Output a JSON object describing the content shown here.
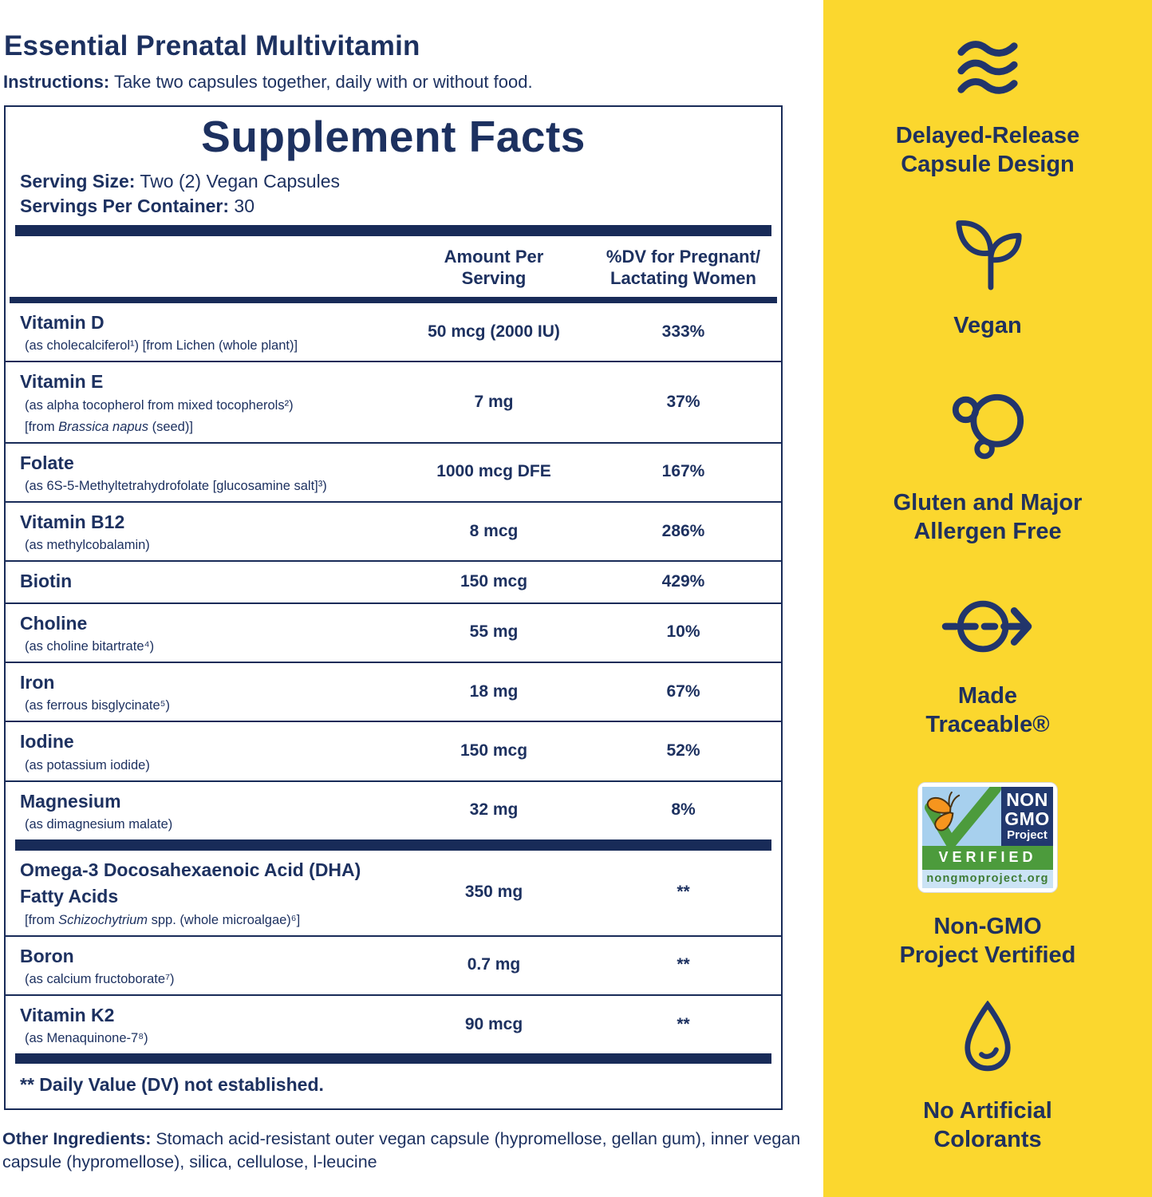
{
  "colors": {
    "navy": "#1D3160",
    "panel_yellow": "#FBD72E",
    "nongmo_sky": "#A7D0EE",
    "nongmo_navy": "#21386E",
    "nongmo_green": "#4C9B3C",
    "nongmo_orange": "#F6951E"
  },
  "header": {
    "title": "Essential Prenatal Multivitamin",
    "instructions_label": "Instructions:",
    "instructions_text": " Take two capsules together, daily with or without food."
  },
  "supplement_facts": {
    "title": "Supplement Facts",
    "serving_size_label": "Serving Size:",
    "serving_size_value": " Two (2) Vegan Capsules",
    "servings_label": "Servings Per Container:",
    "servings_value": " 30",
    "col_amount": "Amount Per\nServing",
    "col_dv": "%DV for Pregnant/\nLactating Women",
    "rows": [
      {
        "name": "Vitamin D",
        "sub": [
          "(as cholecalciferol¹) [from Lichen (whole plant)]"
        ],
        "amount": "50 mcg (2000 IU)",
        "dv": "333%"
      },
      {
        "name": "Vitamin E",
        "sub": [
          "(as alpha tocopherol from mixed tocopherols²)",
          "[from <i>Brassica napus</i> (seed)]"
        ],
        "amount": "7 mg",
        "dv": "37%"
      },
      {
        "name": "Folate",
        "sub": [
          "(as 6S-5-Methyltetrahydrofolate [glucosamine salt]³)"
        ],
        "amount": "1000 mcg DFE",
        "dv": "167%"
      },
      {
        "name": "Vitamin B12",
        "sub": [
          "(as methylcobalamin)"
        ],
        "amount": "8 mcg",
        "dv": "286%"
      },
      {
        "name": "Biotin",
        "sub": [],
        "amount": "150 mcg",
        "dv": "429%"
      },
      {
        "name": "Choline",
        "sub": [
          "(as choline bitartrate⁴)"
        ],
        "amount": "55 mg",
        "dv": "10%"
      },
      {
        "name": "Iron",
        "sub": [
          "(as ferrous bisglycinate⁵)"
        ],
        "amount": "18 mg",
        "dv": "67%"
      },
      {
        "name": "Iodine",
        "sub": [
          "(as potassium iodide)"
        ],
        "amount": "150 mcg",
        "dv": "52%"
      },
      {
        "name": "Magnesium",
        "sub": [
          "(as dimagnesium malate)"
        ],
        "amount": "32 mg",
        "dv": "8%",
        "thick_divider_after": true
      },
      {
        "name": "Omega-3 Docosahexaenoic Acid (DHA)\nFatty Acids",
        "sub": [
          "[from <i>Schizochytrium</i> spp. (whole microalgae)⁶]"
        ],
        "amount": "350 mg",
        "dv": "**"
      },
      {
        "name": "Boron",
        "sub": [
          "(as calcium fructoborate⁷)"
        ],
        "amount": "0.7 mg",
        "dv": "**"
      },
      {
        "name": "Vitamin K2",
        "sub": [
          "(as Menaquinone-7⁸)"
        ],
        "amount": "90 mcg",
        "dv": "**"
      }
    ],
    "footnote": "** Daily Value (DV) not established."
  },
  "other_ingredients": {
    "label": "Other Ingredients:",
    "text": " Stomach acid-resistant outer vegan capsule (hypromellose, gellan gum), inner vegan capsule (hypromellose),  silica, cellulose, l-leucine"
  },
  "sidebar": {
    "features": [
      {
        "icon": "waves-icon",
        "label": "Delayed-Release\nCapsule Design"
      },
      {
        "icon": "sprout-icon",
        "label": "Vegan"
      },
      {
        "icon": "molecule-icon",
        "label": "Gluten and Major\nAllergen Free"
      },
      {
        "icon": "traceable-arrow-icon",
        "label": "Made\nTraceable®"
      },
      {
        "icon": "non-gmo-badge",
        "label": "Non-GMO\nProject Vertified"
      },
      {
        "icon": "droplet-icon",
        "label": "No Artificial\nColorants"
      }
    ],
    "non_gmo_badge": {
      "line1": "NON",
      "line2": "GMO",
      "line3": "Project",
      "verified": "VERIFIED",
      "url": "nongmoproject.org"
    }
  }
}
